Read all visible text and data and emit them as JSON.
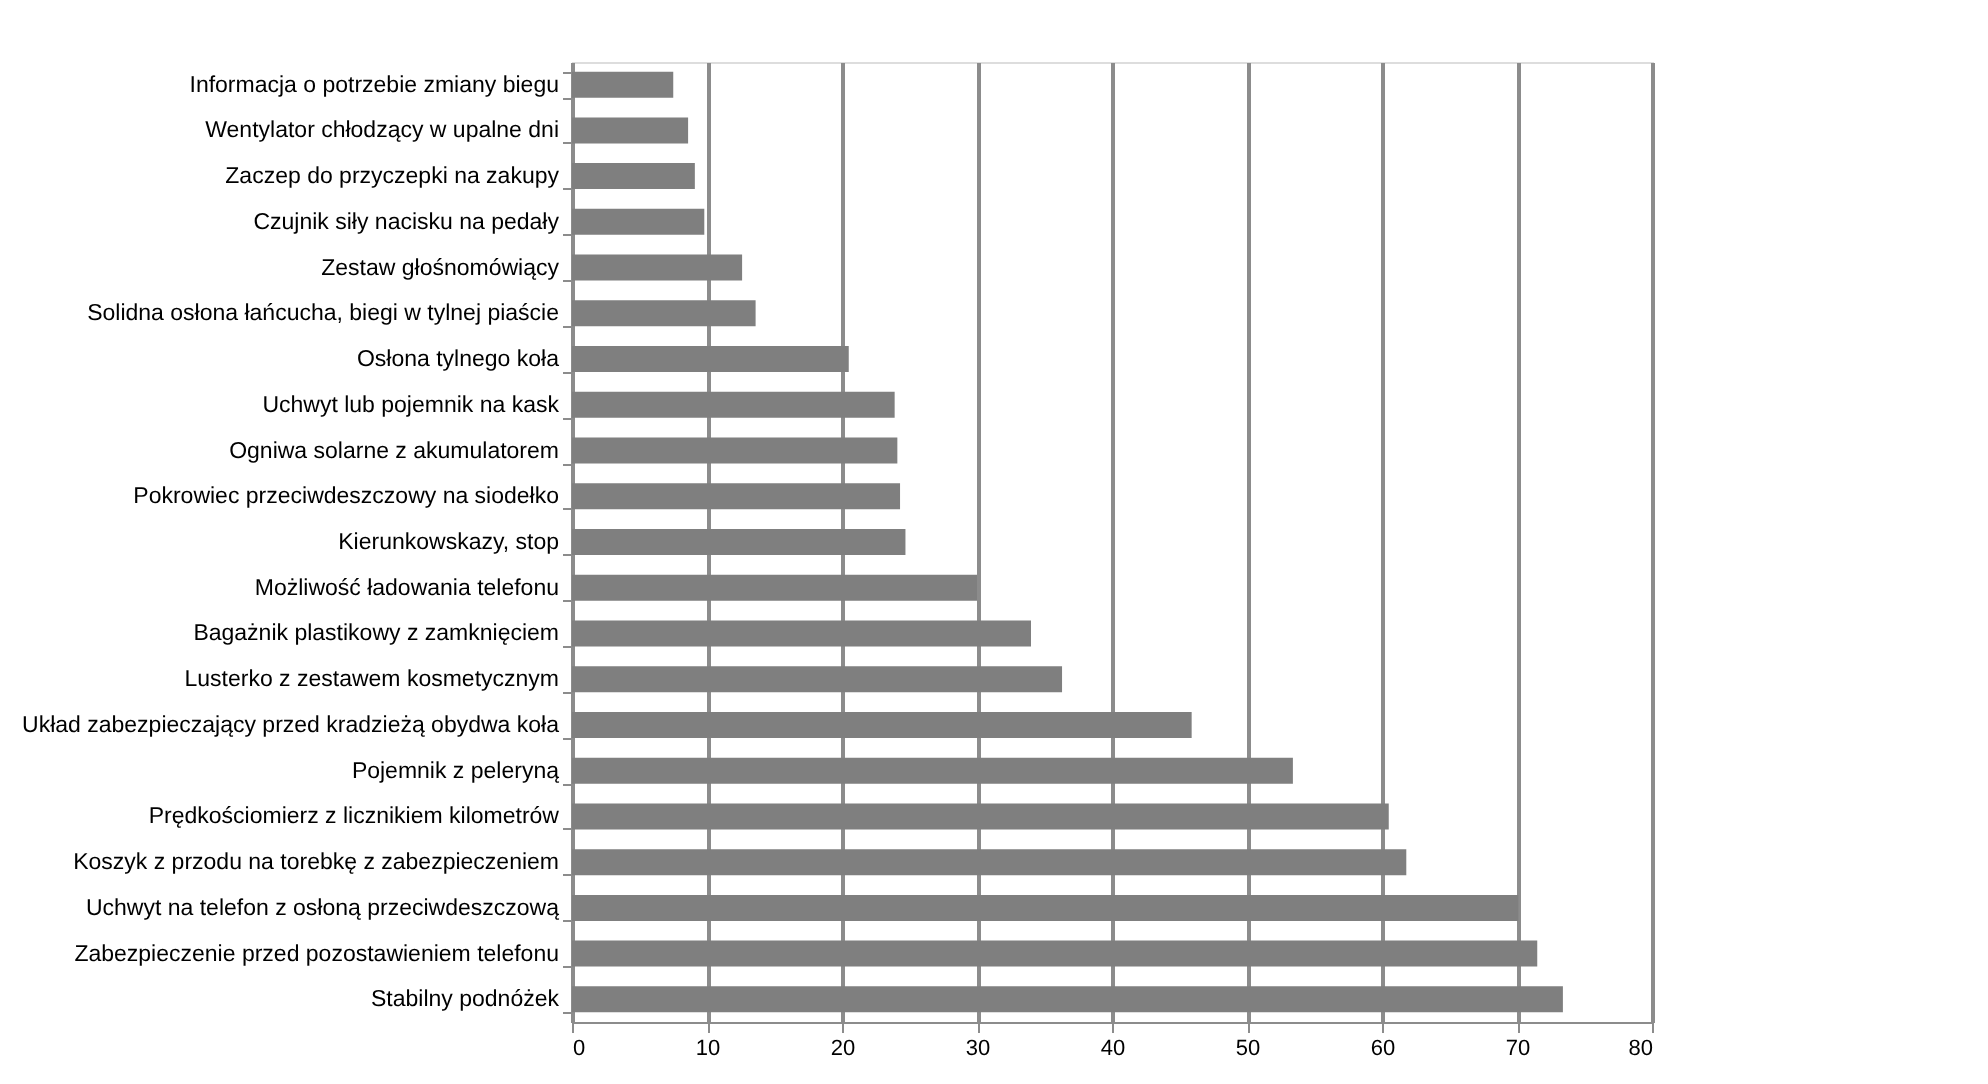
{
  "chart_data": {
    "type": "bar",
    "orientation": "horizontal",
    "categories": [
      "Informacja o potrzebie zmiany biegu",
      "Wentylator chłodzący w upalne dni",
      "Zaczep do przyczepki na zakupy",
      "Czujnik siły nacisku na pedały",
      "Zestaw głośnomówiący",
      "Solidna osłona łańcucha, biegi w tylnej piaście",
      "Osłona tylnego koła",
      "Uchwyt lub pojemnik na kask",
      "Ogniwa solarne z akumulatorem",
      "Pokrowiec przeciwdeszczowy na siodełko",
      "Kierunkowskazy, stop",
      "Możliwość ładowania telefonu",
      "Bagażnik plastikowy z zamknięciem",
      "Lusterko z zestawem kosmetycznym",
      "Układ zabezpieczający przed kradzieżą obydwa koła",
      "Pojemnik z peleryną",
      "Prędkościomierz z licznikiem kilometrów",
      "Koszyk z przodu na torebkę z zabezpieczeniem",
      "Uchwyt na telefon z osłoną przeciwdeszczową",
      "Zabezpieczenie przed pozostawieniem telefonu",
      "Stabilny podnóżek"
    ],
    "series": [
      {
        "color": "#7f7f7f",
        "values": [
          7.5,
          8.6,
          9.1,
          9.8,
          12.6,
          13.6,
          20.5,
          23.9,
          24.1,
          24.3,
          24.7,
          30,
          34,
          36.3,
          45.9,
          53.4,
          60.5,
          61.8,
          70.1,
          71.5,
          73.4
        ]
      }
    ],
    "xlim": [
      0,
      80
    ],
    "xticks": [
      0,
      10,
      20,
      30,
      40,
      50,
      60,
      70,
      80
    ],
    "grid": "x"
  }
}
